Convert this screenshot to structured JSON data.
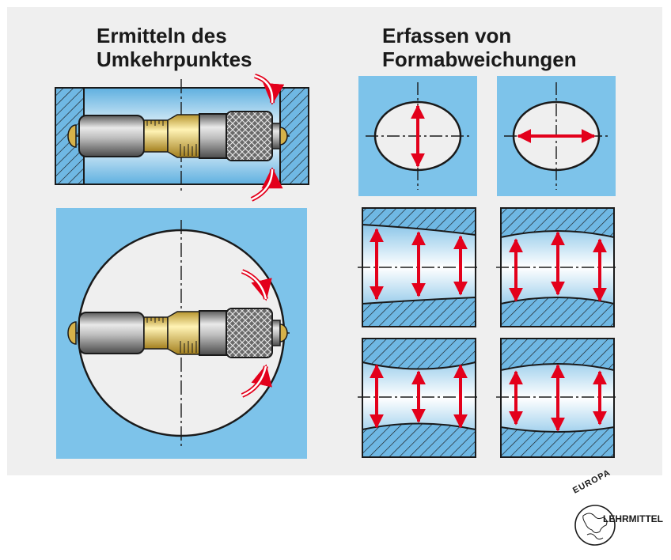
{
  "titles": {
    "left_line1": "Ermitteln des",
    "left_line2": "Umkehrpunktes",
    "right_line1": "Erfassen von",
    "right_line2": "Formabweichungen"
  },
  "logo": {
    "top_text": "EUROPA",
    "side_text": "LEHRMITTEL"
  },
  "colors": {
    "panel_gray": "#efefef",
    "sky_blue": "#7dc3ea",
    "arrow_red": "#e3001b",
    "hatch_blue": "#6fb8e4",
    "outline": "#1a1a1a"
  },
  "icons": [
    "micrometer-icon",
    "red-double-arrow-icon",
    "curved-arrow-icon",
    "europa-lehrmittel-logo"
  ]
}
